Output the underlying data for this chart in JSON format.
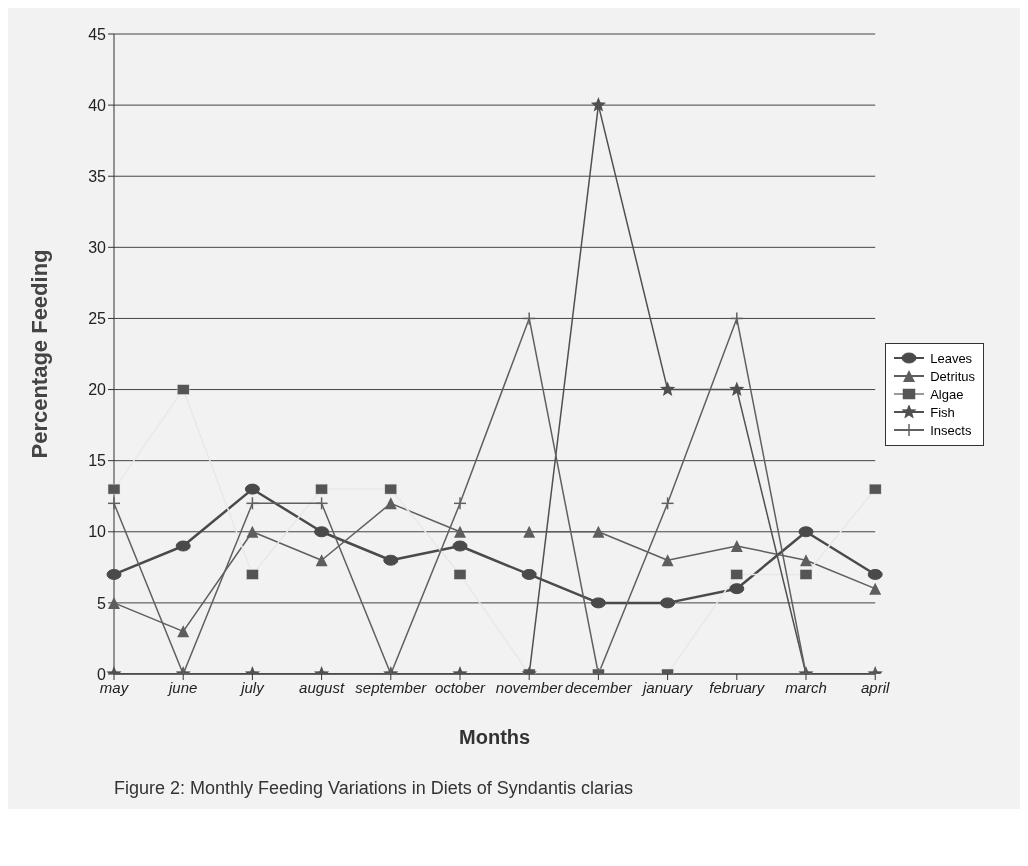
{
  "chart_data": {
    "type": "line",
    "ylabel": "Percentage Feeding",
    "xlabel": "Months",
    "categories": [
      "may",
      "june",
      "july",
      "august",
      "september",
      "october",
      "november",
      "december",
      "january",
      "february",
      "march",
      "april"
    ],
    "series": [
      {
        "name": "Leaves",
        "color": "#4a4a4a",
        "marker": "circle",
        "values": [
          7,
          9,
          13,
          10,
          8,
          9,
          7,
          5,
          5,
          6,
          10,
          7
        ]
      },
      {
        "name": "Detritus",
        "color": "#5e5e5e",
        "marker": "triangle",
        "values": [
          5,
          3,
          10,
          8,
          12,
          10,
          10,
          10,
          8,
          9,
          8,
          6
        ]
      },
      {
        "name": "Algae",
        "color": "#e8e8e8",
        "marker": "square",
        "values": [
          13,
          20,
          7,
          13,
          13,
          7,
          0,
          0,
          0,
          7,
          7,
          13
        ]
      },
      {
        "name": "Fish",
        "color": "#505050",
        "marker": "star",
        "values": [
          0,
          0,
          0,
          0,
          0,
          0,
          0,
          40,
          20,
          20,
          0,
          0
        ]
      },
      {
        "name": "Insects",
        "color": "#606060",
        "marker": "cross",
        "values": [
          12,
          0,
          12,
          12,
          0,
          12,
          25,
          0,
          12,
          25,
          0,
          0
        ]
      }
    ],
    "ylim": [
      0,
      45
    ],
    "yticks": [
      0,
      5,
      10,
      15,
      20,
      25,
      30,
      35,
      40,
      45
    ],
    "grid": "y",
    "legend": "right",
    "line_style": "solid",
    "annotations": [
      "Figure 2: Monthly Feeding Variations in Diets of Syndantis clarias"
    ]
  }
}
